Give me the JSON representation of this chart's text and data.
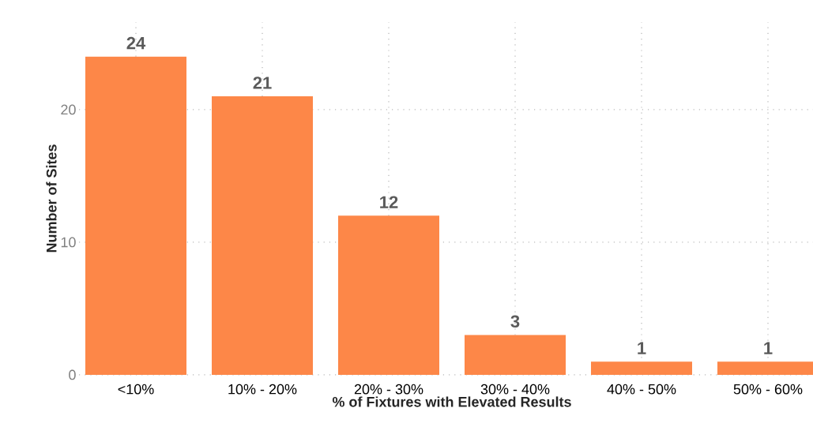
{
  "chart_data": {
    "type": "bar",
    "xlabel": "% of Fixtures with Elevated Results",
    "ylabel": "Number of Sites",
    "categories": [
      "<10%",
      "10% - 20%",
      "20% - 30%",
      "30% - 40%",
      "40% - 50%",
      "50% - 60%"
    ],
    "values": [
      24,
      21,
      12,
      3,
      1,
      1
    ],
    "color": "#fd8748",
    "ylim": [
      0,
      26.6
    ],
    "yticks": [
      0,
      10,
      20
    ],
    "grid": true,
    "data_labels": true
  }
}
